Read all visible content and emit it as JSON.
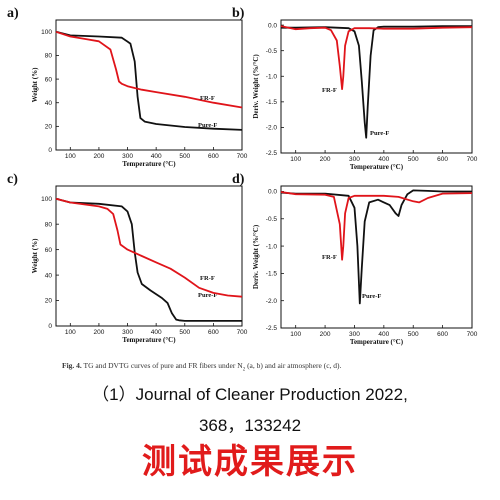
{
  "caption": {
    "fig_label": "Fig. 4.",
    "text": "TG and DVTG curves of pure and FR fibers under N",
    "sub": "2",
    "text_after": " (a, b) and air atmosphere (c, d)."
  },
  "reference": {
    "line1": "（1）Journal of Cleaner Production 2022,",
    "line2": "368，133242"
  },
  "banner": "测试成果展示",
  "colors": {
    "pure": "#111111",
    "fr": "#e0141a"
  },
  "chart_data": [
    {
      "panel": "a)",
      "type": "line",
      "xlabel": "Temperature (°C)",
      "ylabel": "Weight (%)",
      "xlim": [
        50,
        700
      ],
      "ylim": [
        0,
        110
      ],
      "xticks": [
        100,
        200,
        300,
        400,
        500,
        600,
        700
      ],
      "yticks": [
        0,
        20,
        40,
        60,
        80,
        100
      ],
      "series": [
        {
          "name": "Pure-F",
          "color": "#111111",
          "x": [
            50,
            100,
            200,
            280,
            310,
            325,
            335,
            345,
            360,
            400,
            500,
            600,
            700
          ],
          "y": [
            100,
            97,
            96,
            95,
            90,
            75,
            45,
            27,
            24,
            22,
            19.5,
            18,
            17
          ]
        },
        {
          "name": "FR-F",
          "color": "#e0141a",
          "x": [
            50,
            100,
            150,
            200,
            240,
            260,
            270,
            280,
            300,
            350,
            400,
            500,
            600,
            700
          ],
          "y": [
            100,
            96,
            94,
            92,
            85,
            68,
            58,
            56,
            54,
            51,
            49,
            45,
            40,
            36
          ]
        }
      ]
    },
    {
      "panel": "b)",
      "type": "line",
      "xlabel": "Temperature (°C)",
      "ylabel": "Deriv. Weight (%/°C)",
      "xlim": [
        50,
        700
      ],
      "ylim": [
        -2.5,
        0.1
      ],
      "xticks": [
        100,
        200,
        300,
        400,
        500,
        600,
        700
      ],
      "yticks": [
        0.0,
        -0.5,
        -1.0,
        -1.5,
        -2.0,
        -2.5
      ],
      "series": [
        {
          "name": "Pure-F",
          "color": "#111111",
          "x": [
            50,
            100,
            200,
            280,
            300,
            315,
            325,
            335,
            340,
            345,
            355,
            365,
            380,
            400,
            500,
            600,
            700
          ],
          "y": [
            -0.05,
            -0.05,
            -0.04,
            -0.06,
            -0.12,
            -0.4,
            -1.1,
            -1.9,
            -2.2,
            -1.6,
            -0.6,
            -0.1,
            -0.04,
            -0.03,
            -0.03,
            -0.02,
            -0.02
          ]
        },
        {
          "name": "FR-F",
          "color": "#e0141a",
          "x": [
            50,
            100,
            150,
            200,
            220,
            240,
            250,
            258,
            262,
            268,
            280,
            300,
            350,
            400,
            500,
            600,
            700
          ],
          "y": [
            -0.02,
            -0.08,
            -0.06,
            -0.05,
            -0.1,
            -0.3,
            -0.8,
            -1.25,
            -1.0,
            -0.4,
            -0.12,
            -0.06,
            -0.06,
            -0.07,
            -0.07,
            -0.05,
            -0.04
          ]
        }
      ]
    },
    {
      "panel": "c)",
      "type": "line",
      "xlabel": "Temperature (°C)",
      "ylabel": "Weight (%)",
      "xlim": [
        50,
        700
      ],
      "ylim": [
        0,
        110
      ],
      "xticks": [
        100,
        200,
        300,
        400,
        500,
        600,
        700
      ],
      "yticks": [
        0,
        20,
        40,
        60,
        80,
        100
      ],
      "series": [
        {
          "name": "Pure-F",
          "color": "#111111",
          "x": [
            50,
            100,
            200,
            280,
            300,
            315,
            325,
            335,
            350,
            380,
            420,
            440,
            455,
            470,
            480,
            500,
            600,
            700
          ],
          "y": [
            100,
            97,
            96,
            94,
            90,
            80,
            58,
            42,
            33,
            28,
            22,
            18,
            10,
            5,
            4.5,
            4,
            4,
            4
          ]
        },
        {
          "name": "FR-F",
          "color": "#e0141a",
          "x": [
            50,
            100,
            200,
            230,
            250,
            265,
            275,
            300,
            350,
            400,
            450,
            500,
            550,
            600,
            650,
            700
          ],
          "y": [
            100,
            97,
            94,
            92,
            88,
            75,
            64,
            60,
            55,
            50,
            45,
            38,
            30,
            26,
            24,
            23
          ]
        }
      ]
    },
    {
      "panel": "d)",
      "type": "line",
      "xlabel": "Temperature (°C)",
      "ylabel": "Deriv. Weight (%/°C)",
      "xlim": [
        50,
        700
      ],
      "ylim": [
        -2.5,
        0.1
      ],
      "xticks": [
        100,
        200,
        300,
        400,
        500,
        600,
        700
      ],
      "yticks": [
        0.0,
        -0.5,
        -1.0,
        -1.5,
        -2.0,
        -2.5
      ],
      "series": [
        {
          "name": "Pure-F",
          "color": "#111111",
          "x": [
            50,
            100,
            200,
            280,
            300,
            310,
            318,
            325,
            335,
            350,
            380,
            420,
            440,
            450,
            460,
            480,
            500,
            550,
            600,
            700
          ],
          "y": [
            -0.02,
            -0.04,
            -0.04,
            -0.08,
            -0.3,
            -1.0,
            -2.05,
            -1.4,
            -0.55,
            -0.2,
            -0.15,
            -0.25,
            -0.4,
            -0.45,
            -0.25,
            -0.05,
            0.02,
            0.01,
            0.0,
            0.0
          ]
        },
        {
          "name": "FR-F",
          "color": "#e0141a",
          "x": [
            50,
            100,
            200,
            230,
            250,
            258,
            262,
            268,
            280,
            300,
            350,
            400,
            450,
            500,
            520,
            550,
            600,
            700
          ],
          "y": [
            -0.01,
            -0.05,
            -0.06,
            -0.1,
            -0.6,
            -1.25,
            -1.0,
            -0.4,
            -0.12,
            -0.08,
            -0.08,
            -0.08,
            -0.1,
            -0.18,
            -0.2,
            -0.12,
            -0.04,
            -0.03
          ]
        }
      ]
    }
  ]
}
